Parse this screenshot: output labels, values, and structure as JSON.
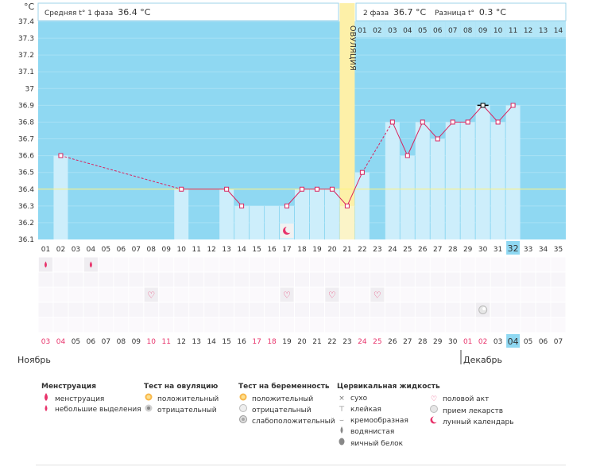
{
  "header": {
    "phase1_label": "Средняя t° 1 фаза",
    "phase1_value": "36.4 °C",
    "phase2_label": "2 фаза",
    "phase2_value": "36.7 °C",
    "diff_label": "Разница t°",
    "diff_value": "0.3 °C"
  },
  "unit_label": "°C",
  "ovulation_label": "ОВУЛЯЦИЯ",
  "colors": {
    "sky": "#8fd8f2",
    "bar": "#cdeefb",
    "ovulation": "#fdf0a8",
    "line": "#d8235e",
    "menstruation": "#e8336b",
    "highlight_day": "#8fd8f2"
  },
  "chart_data": {
    "type": "line",
    "ylim": [
      36.1,
      37.4
    ],
    "y_ticks": [
      "37.4",
      "37.3",
      "37.2",
      "37.1",
      "37",
      "36.9",
      "36.8",
      "36.7",
      "36.6",
      "36.5",
      "36.4",
      "36.3",
      "36.2",
      "36.1"
    ],
    "coverline": 36.4,
    "cycle_days": [
      "01",
      "02",
      "03",
      "04",
      "05",
      "06",
      "07",
      "08",
      "09",
      "10",
      "11",
      "12",
      "13",
      "14",
      "15",
      "16",
      "17",
      "18",
      "19",
      "20",
      "21",
      "22",
      "23",
      "24",
      "25",
      "26",
      "27",
      "28",
      "29",
      "30",
      "31",
      "32",
      "33",
      "34",
      "35"
    ],
    "calendar_dates": [
      "03",
      "04",
      "05",
      "06",
      "07",
      "08",
      "09",
      "10",
      "11",
      "12",
      "13",
      "14",
      "15",
      "16",
      "17",
      "18",
      "19",
      "20",
      "21",
      "22",
      "23",
      "24",
      "25",
      "26",
      "27",
      "28",
      "29",
      "30",
      "01",
      "02",
      "03",
      "04",
      "05",
      "06",
      "07"
    ],
    "red_date_indices": [
      0,
      1,
      7,
      8,
      14,
      15,
      21,
      22,
      28,
      29
    ],
    "current_day_index": 31,
    "luteal_day_labels": [
      "01",
      "02",
      "03",
      "04",
      "05",
      "06",
      "07",
      "08",
      "09",
      "10",
      "11",
      "12",
      "13",
      "14"
    ],
    "ovulation_day": 21,
    "temperatures": [
      {
        "day": 2,
        "value": 36.6
      },
      {
        "day": 10,
        "value": 36.4
      },
      {
        "day": 13,
        "value": 36.4
      },
      {
        "day": 14,
        "value": 36.3
      },
      {
        "day": 17,
        "value": 36.3
      },
      {
        "day": 18,
        "value": 36.4
      },
      {
        "day": 19,
        "value": 36.4
      },
      {
        "day": 20,
        "value": 36.4
      },
      {
        "day": 21,
        "value": 36.3
      },
      {
        "day": 22,
        "value": 36.5
      },
      {
        "day": 24,
        "value": 36.8
      },
      {
        "day": 25,
        "value": 36.6
      },
      {
        "day": 26,
        "value": 36.8
      },
      {
        "day": 27,
        "value": 36.7
      },
      {
        "day": 28,
        "value": 36.8
      },
      {
        "day": 29,
        "value": 36.8
      },
      {
        "day": 30,
        "value": 36.9
      },
      {
        "day": 31,
        "value": 36.8
      },
      {
        "day": 32,
        "value": 36.9
      }
    ],
    "bars": [
      {
        "day": 2,
        "value": 36.6
      },
      {
        "day": 10,
        "value": 36.4
      },
      {
        "day": 13,
        "value": 36.4
      },
      {
        "day": 14,
        "value": 36.3
      },
      {
        "day": 15,
        "value": 36.3
      },
      {
        "day": 16,
        "value": 36.3
      },
      {
        "day": 17,
        "value": 36.3
      },
      {
        "day": 18,
        "value": 36.4
      },
      {
        "day": 19,
        "value": 36.4
      },
      {
        "day": 20,
        "value": 36.4
      },
      {
        "day": 21,
        "value": 36.3
      },
      {
        "day": 22,
        "value": 36.5
      },
      {
        "day": 24,
        "value": 36.8
      },
      {
        "day": 25,
        "value": 36.6
      },
      {
        "day": 26,
        "value": 36.8
      },
      {
        "day": 27,
        "value": 36.7
      },
      {
        "day": 28,
        "value": 36.8
      },
      {
        "day": 29,
        "value": 36.8
      },
      {
        "day": 30,
        "value": 36.9
      },
      {
        "day": 31,
        "value": 36.8
      },
      {
        "day": 32,
        "value": 36.9
      }
    ],
    "solid_segments": [
      [
        10,
        13
      ],
      [
        13,
        14
      ],
      [
        17,
        18
      ],
      [
        18,
        19
      ],
      [
        19,
        20
      ],
      [
        20,
        21
      ],
      [
        21,
        22
      ],
      [
        24,
        25
      ],
      [
        25,
        26
      ],
      [
        26,
        27
      ],
      [
        27,
        28
      ],
      [
        28,
        29
      ],
      [
        29,
        30
      ],
      [
        30,
        31
      ],
      [
        31,
        32
      ]
    ],
    "dashed_segments": [
      [
        2,
        10
      ],
      [
        22,
        24
      ]
    ],
    "max_marker_day": 30,
    "chart_icons": [
      {
        "day": 17,
        "row": "chart",
        "icon": "lunar-calendar-icon"
      },
      {
        "day": 1,
        "row": 0,
        "icon": "spotting-icon"
      },
      {
        "day": 4,
        "row": 0,
        "icon": "spotting-icon"
      },
      {
        "day": 8,
        "row": 2,
        "icon": "intercourse-icon"
      },
      {
        "day": 17,
        "row": 2,
        "icon": "intercourse-icon"
      },
      {
        "day": 20,
        "row": 2,
        "icon": "intercourse-icon"
      },
      {
        "day": 23,
        "row": 2,
        "icon": "intercourse-icon"
      },
      {
        "day": 30,
        "row": 3,
        "icon": "medication-icon"
      }
    ]
  },
  "months": {
    "left": "Ноябрь",
    "right": "Декабрь"
  },
  "legend": {
    "menstruation": {
      "title": "Менструация",
      "items": [
        {
          "icon": "menstruation-icon",
          "label": "менструация"
        },
        {
          "icon": "spotting-icon",
          "label": "небольшие выделения"
        }
      ]
    },
    "ovulation_test": {
      "title": "Тест на овуляцию",
      "items": [
        {
          "icon": "positive-test-icon",
          "label": "положительный"
        },
        {
          "icon": "negative-test-icon",
          "label": "отрицательный"
        }
      ]
    },
    "pregnancy_test": {
      "title": "Тест на беременность",
      "items": [
        {
          "icon": "positive-test-icon",
          "label": "положительный"
        },
        {
          "icon": "negative-test-icon",
          "label": "отрицательный"
        },
        {
          "icon": "weak-positive-test-icon",
          "label": "слабоположительный"
        }
      ]
    },
    "cervical": {
      "title": "Цервикальная жидкость",
      "items": [
        {
          "icon": "dry-icon",
          "label": "сухо"
        },
        {
          "icon": "sticky-icon",
          "label": "клейкая"
        },
        {
          "icon": "creamy-icon",
          "label": "кремообразная"
        },
        {
          "icon": "watery-icon",
          "label": "водянистая"
        },
        {
          "icon": "egg-white-icon",
          "label": "яичный белок"
        }
      ]
    },
    "other": {
      "items": [
        {
          "icon": "intercourse-icon",
          "label": "половой акт"
        },
        {
          "icon": "medication-icon",
          "label": "прием лекарств"
        },
        {
          "icon": "lunar-calendar-icon",
          "label": "лунный календарь"
        }
      ]
    }
  }
}
